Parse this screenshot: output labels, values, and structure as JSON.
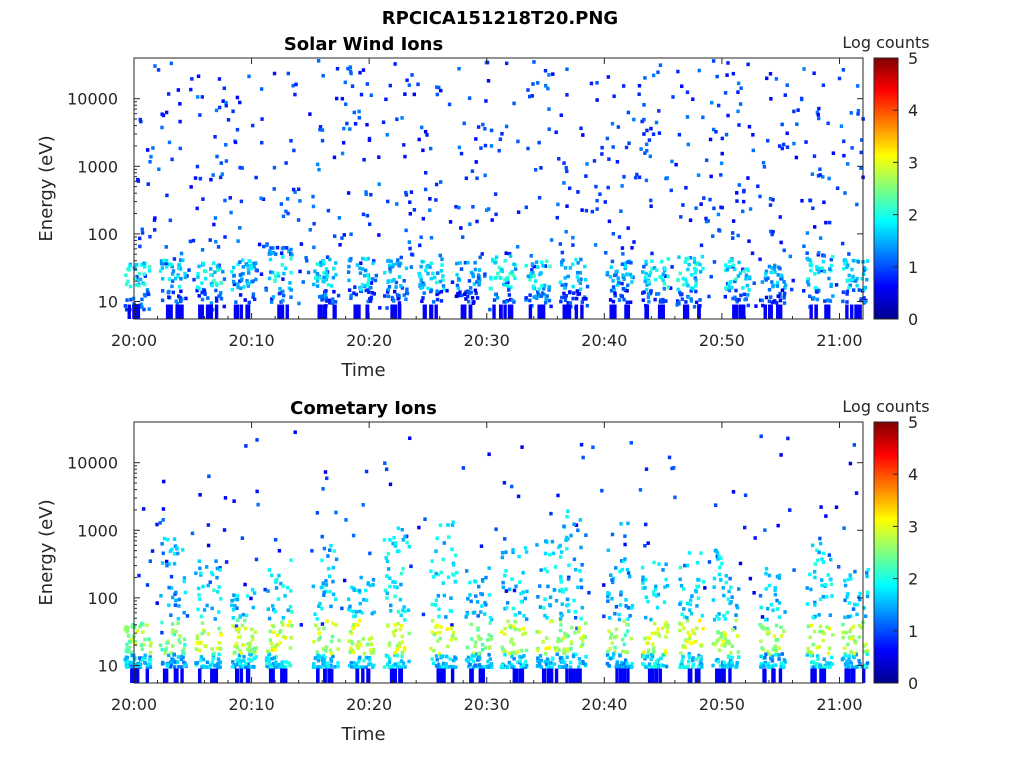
{
  "figure_title": "RPCICA151218T20.PNG",
  "chart_data": [
    {
      "type": "heatmap",
      "title": "Solar Wind Ions",
      "xlabel": "Time",
      "ylabel": "Energy (eV)",
      "x_ticks": [
        "20:00",
        "20:10",
        "20:20",
        "20:30",
        "20:40",
        "20:50",
        "21:00"
      ],
      "x_range": [
        "20:00",
        "21:02"
      ],
      "y_ticks": [
        "10",
        "100",
        "1000",
        "10000"
      ],
      "y_scale": "log",
      "y_range": [
        5.5,
        40000
      ],
      "colorbar": {
        "label": "Log counts",
        "ticks": [
          "0",
          "1",
          "2",
          "3",
          "4",
          "5"
        ],
        "range": [
          0,
          5
        ],
        "colormap": "jet"
      },
      "bursts": [
        {
          "t": "20:00",
          "e_low": 8,
          "e_high": 40,
          "level": 1.8
        },
        {
          "t": "20:03",
          "e_low": 10,
          "e_high": 45,
          "level": 1.6
        },
        {
          "t": "20:06",
          "e_low": 10,
          "e_high": 40,
          "level": 1.8
        },
        {
          "t": "20:09",
          "e_low": 10,
          "e_high": 45,
          "level": 1.5
        },
        {
          "t": "20:12",
          "e_low": 10,
          "e_high": 70,
          "level": 1.9
        },
        {
          "t": "20:16",
          "e_low": 10,
          "e_high": 45,
          "level": 1.7
        },
        {
          "t": "20:19",
          "e_low": 10,
          "e_high": 50,
          "level": 1.6
        },
        {
          "t": "20:22",
          "e_low": 10,
          "e_high": 45,
          "level": 1.4
        },
        {
          "t": "20:25",
          "e_low": 10,
          "e_high": 45,
          "level": 1.6
        },
        {
          "t": "20:28",
          "e_low": 10,
          "e_high": 40,
          "level": 1.3
        },
        {
          "t": "20:31",
          "e_low": 10,
          "e_high": 50,
          "level": 1.9
        },
        {
          "t": "20:34",
          "e_low": 10,
          "e_high": 45,
          "level": 1.8
        },
        {
          "t": "20:37",
          "e_low": 10,
          "e_high": 45,
          "level": 1.5
        },
        {
          "t": "20:41",
          "e_low": 10,
          "e_high": 45,
          "level": 1.4
        },
        {
          "t": "20:44",
          "e_low": 10,
          "e_high": 50,
          "level": 1.7
        },
        {
          "t": "20:47",
          "e_low": 10,
          "e_high": 50,
          "level": 1.9
        },
        {
          "t": "20:51",
          "e_low": 10,
          "e_high": 45,
          "level": 1.8
        },
        {
          "t": "20:54",
          "e_low": 10,
          "e_high": 40,
          "level": 1.4
        },
        {
          "t": "20:58",
          "e_low": 10,
          "e_high": 60,
          "level": 1.7
        },
        {
          "t": "21:01",
          "e_low": 10,
          "e_high": 45,
          "level": 1.6
        }
      ],
      "background_level": 0.6
    },
    {
      "type": "heatmap",
      "title": "Cometary Ions",
      "xlabel": "Time",
      "ylabel": "Energy (eV)",
      "x_ticks": [
        "20:00",
        "20:10",
        "20:20",
        "20:30",
        "20:40",
        "20:50",
        "21:00"
      ],
      "x_range": [
        "20:00",
        "21:02"
      ],
      "y_ticks": [
        "10",
        "100",
        "1000",
        "10000"
      ],
      "y_scale": "log",
      "y_range": [
        5.5,
        40000
      ],
      "colorbar": {
        "label": "Log counts",
        "ticks": [
          "0",
          "1",
          "2",
          "3",
          "4",
          "5"
        ],
        "range": [
          0,
          5
        ],
        "colormap": "jet"
      },
      "bursts": [
        {
          "t": "20:00",
          "e_low": 10,
          "e_high": 45,
          "level": 2.6
        },
        {
          "t": "20:03",
          "e_low": 10,
          "e_high": 1000,
          "level": 2.4
        },
        {
          "t": "20:06",
          "e_low": 10,
          "e_high": 400,
          "level": 2.8
        },
        {
          "t": "20:09",
          "e_low": 10,
          "e_high": 150,
          "level": 2.7
        },
        {
          "t": "20:12",
          "e_low": 10,
          "e_high": 500,
          "level": 2.9
        },
        {
          "t": "20:16",
          "e_low": 10,
          "e_high": 700,
          "level": 2.7
        },
        {
          "t": "20:19",
          "e_low": 10,
          "e_high": 250,
          "level": 2.8
        },
        {
          "t": "20:22",
          "e_low": 10,
          "e_high": 1200,
          "level": 2.9
        },
        {
          "t": "20:26",
          "e_low": 10,
          "e_high": 1500,
          "level": 2.8
        },
        {
          "t": "20:29",
          "e_low": 10,
          "e_high": 300,
          "level": 2.5
        },
        {
          "t": "20:32",
          "e_low": 10,
          "e_high": 600,
          "level": 2.7
        },
        {
          "t": "20:35",
          "e_low": 10,
          "e_high": 800,
          "level": 2.8
        },
        {
          "t": "20:37",
          "e_low": 10,
          "e_high": 3000,
          "level": 2.6
        },
        {
          "t": "20:41",
          "e_low": 10,
          "e_high": 1500,
          "level": 2.5
        },
        {
          "t": "20:44",
          "e_low": 10,
          "e_high": 400,
          "level": 2.8
        },
        {
          "t": "20:47",
          "e_low": 10,
          "e_high": 600,
          "level": 2.9
        },
        {
          "t": "20:50",
          "e_low": 10,
          "e_high": 600,
          "level": 2.8
        },
        {
          "t": "20:54",
          "e_low": 10,
          "e_high": 300,
          "level": 2.6
        },
        {
          "t": "20:58",
          "e_low": 10,
          "e_high": 700,
          "level": 2.8
        },
        {
          "t": "21:01",
          "e_low": 10,
          "e_high": 300,
          "level": 2.7
        }
      ],
      "background_level": 0.5
    }
  ]
}
